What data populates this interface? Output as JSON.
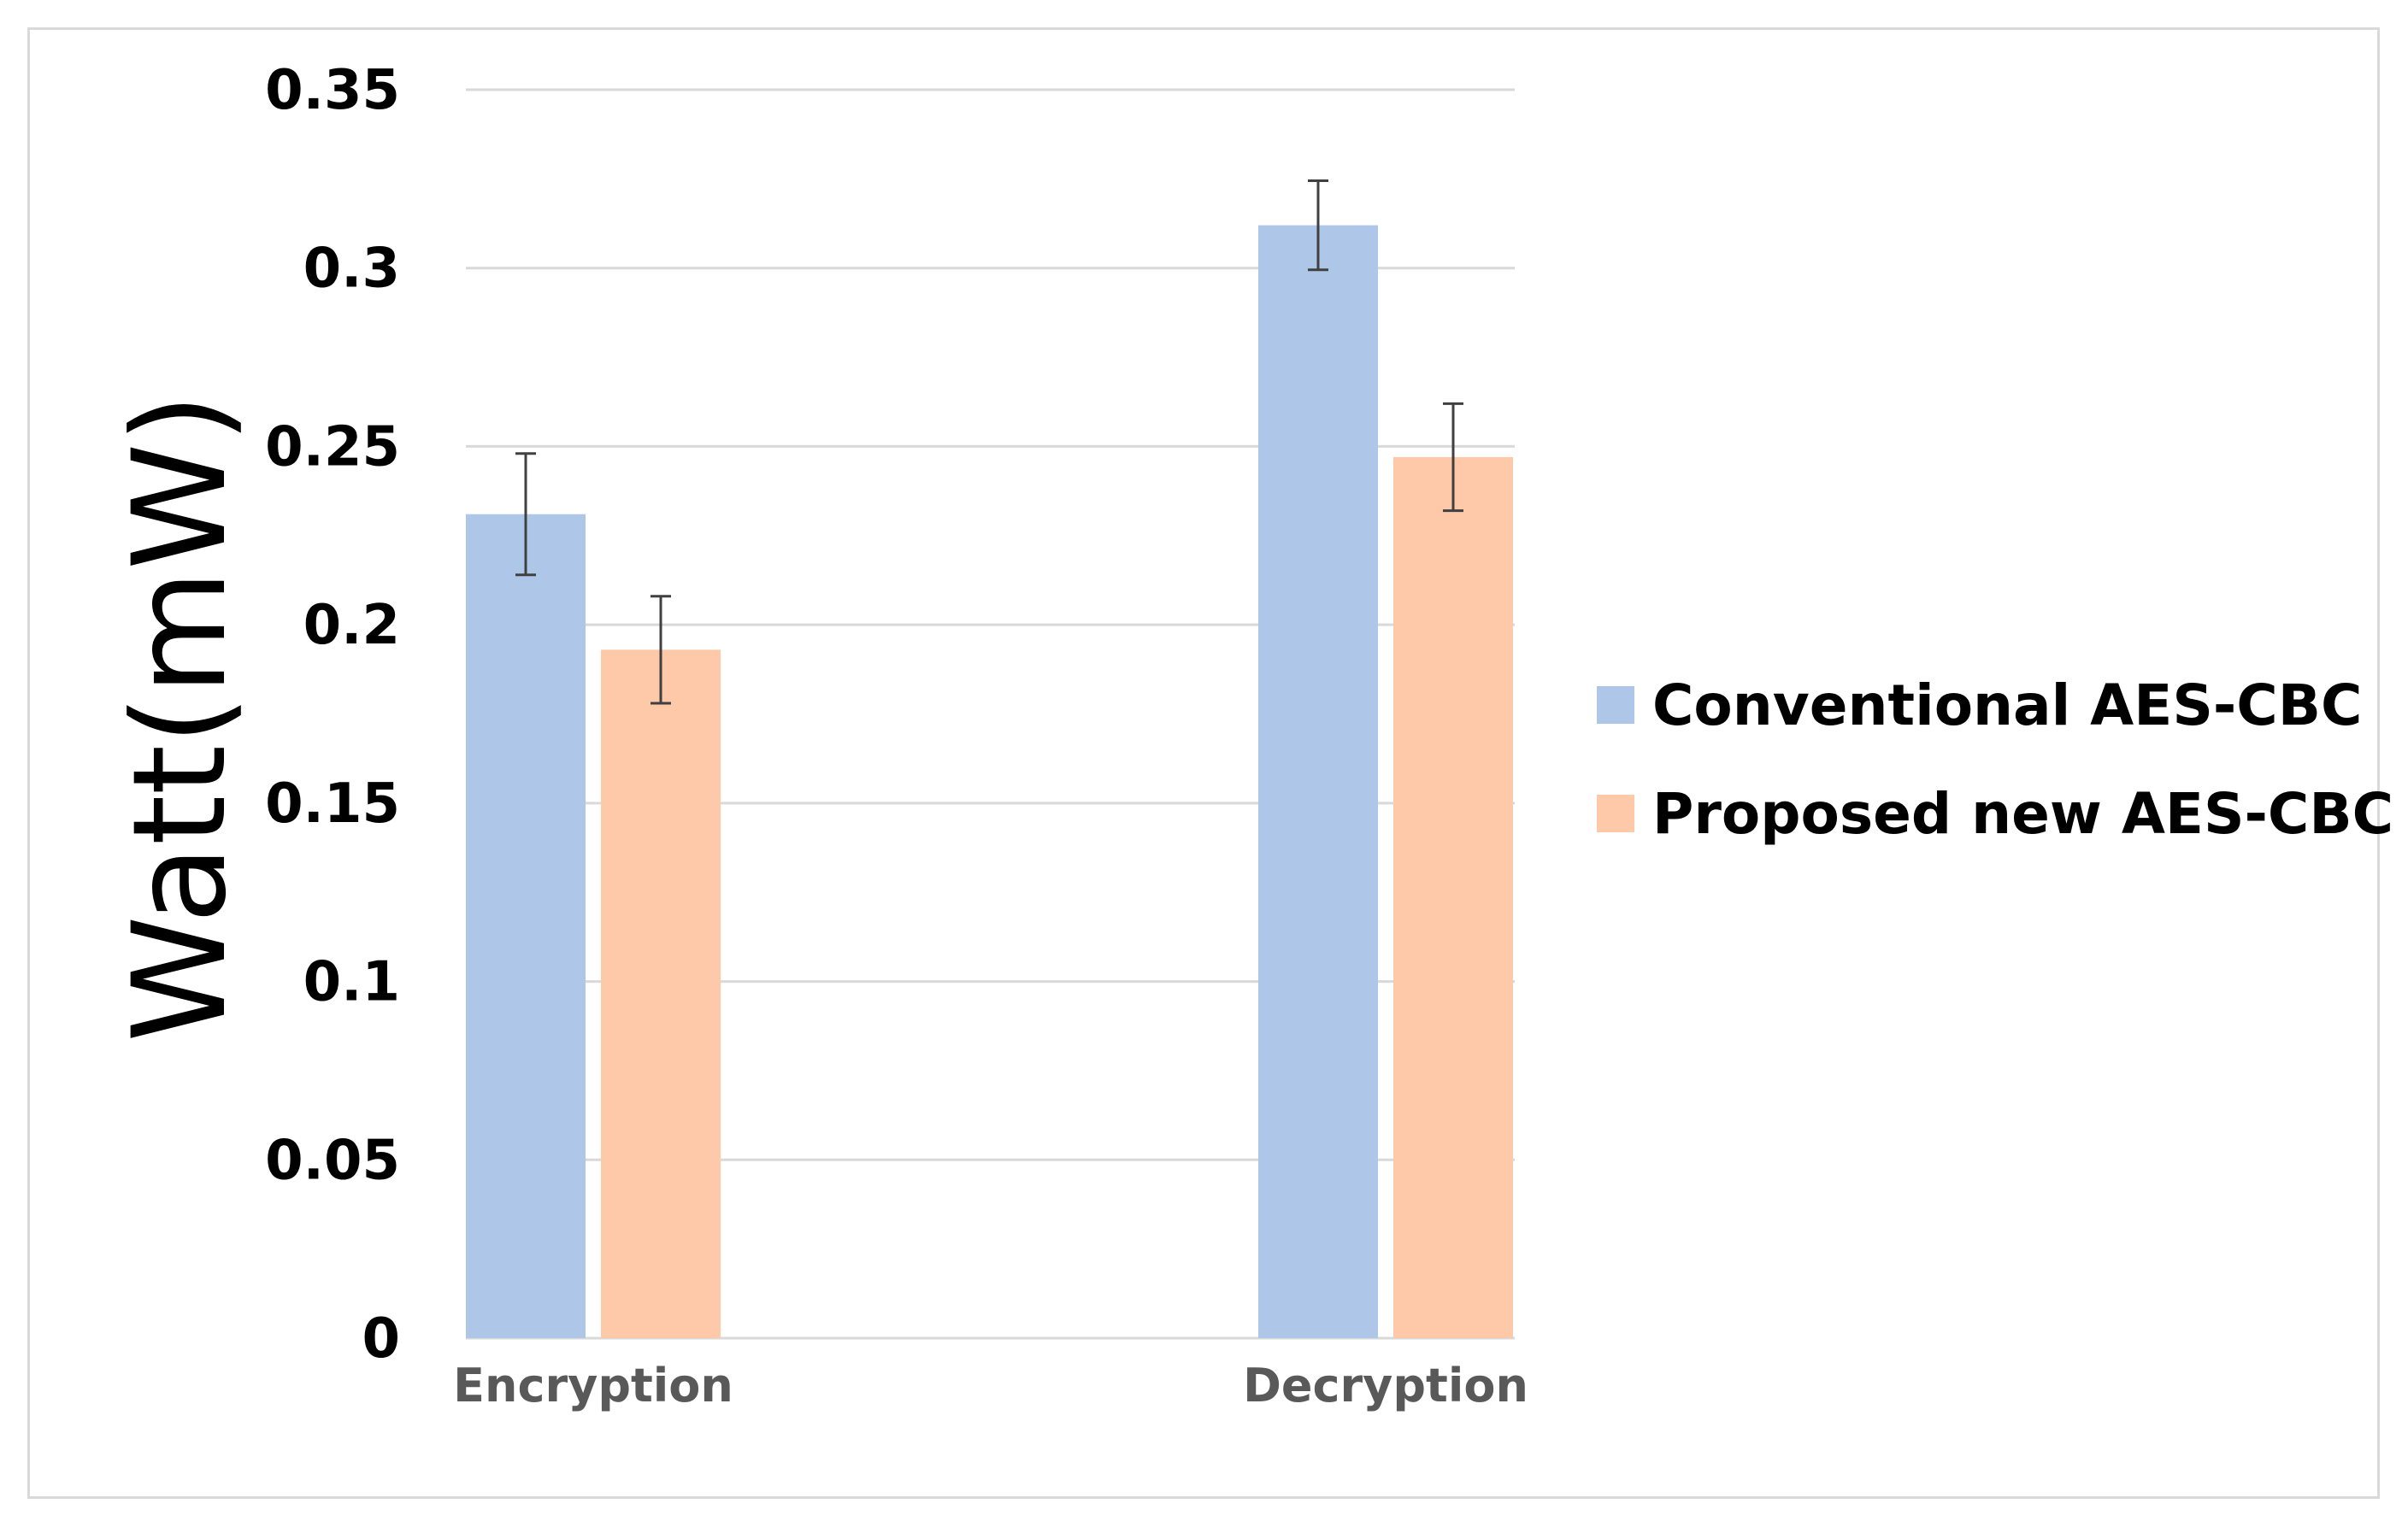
{
  "chart_data": {
    "type": "bar",
    "categories": [
      "Encryption",
      "Decryption"
    ],
    "series": [
      {
        "name": "Conventional AES-CBC",
        "color": "#aec7e8",
        "values": [
          0.231,
          0.312
        ],
        "error": [
          0.017,
          0.0125
        ]
      },
      {
        "name": "Proposed new AES-CBC",
        "color": "#fec9a8",
        "values": [
          0.193,
          0.247
        ],
        "error": [
          0.015,
          0.015
        ]
      }
    ],
    "title": "",
    "xlabel": "",
    "ylabel": "Watt(mW)",
    "ylim": [
      0,
      0.35
    ],
    "yticks": [
      0,
      0.05,
      0.1,
      0.15,
      0.2,
      0.25,
      0.3,
      0.35
    ],
    "ytick_labels": [
      "0",
      "0.05",
      "0.1",
      "0.15",
      "0.2",
      "0.25",
      "0.3",
      "0.35"
    ],
    "grid": true,
    "legend_position": "right",
    "colors": {
      "grid": "#d9d9d9",
      "error_bar": "#404040"
    }
  }
}
